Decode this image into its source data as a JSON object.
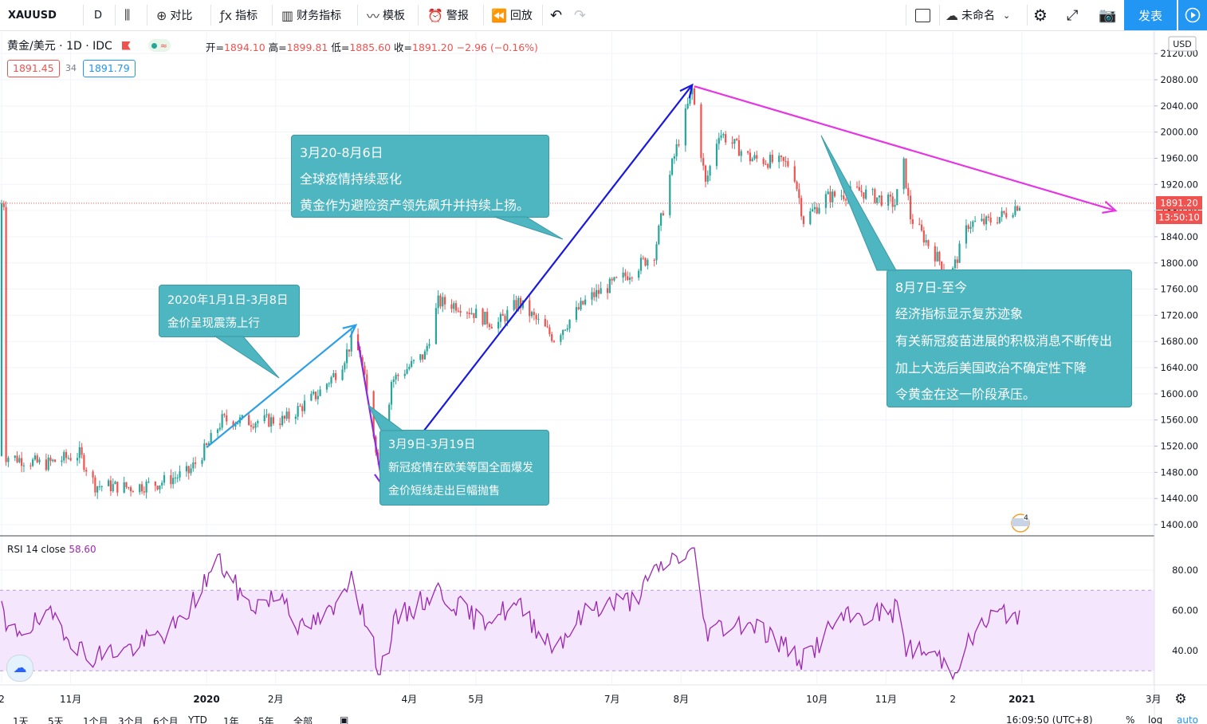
{
  "toolbar": {
    "symbol": "XAUUSD",
    "interval": "D",
    "compare": "对比",
    "indicators": "指标",
    "financials": "财务指标",
    "templates": "模板",
    "alerts": "警报",
    "replay": "回放",
    "layout_name": "未命名",
    "publish": "发表"
  },
  "legend": {
    "title": "黄金/美元 · 1D · IDC",
    "open_label": "开=",
    "open": "1894.10",
    "high_label": "高=",
    "high": "1899.81",
    "low_label": "低=",
    "low": "1885.60",
    "close_label": "收=",
    "close": "1891.20",
    "change": "−2.96 (−0.16%)",
    "bid": "1891.45",
    "spread": "34",
    "ask": "1891.79"
  },
  "currency": "USD",
  "last_price_label": "1891.20",
  "countdown": "13:50:10",
  "rsi": {
    "label": "RSI 14 close",
    "value": "58.60",
    "ticks": [
      "80.00",
      "60.00",
      "40.00"
    ]
  },
  "callouts": [
    {
      "lines": [
        "3月20-8月6日",
        "全球疫情持续恶化",
        "黄金作为避险资产领先飙升并持续上扬。"
      ]
    },
    {
      "lines": [
        "2020年1月1日-3月8日",
        "金价呈现震荡上行"
      ]
    },
    {
      "lines": [
        "3月9日-3月19日",
        "新冠疫情在欧美等国全面爆发",
        "金价短线走出巨幅抛售"
      ]
    },
    {
      "lines": [
        "8月7日-至今",
        "经济指标显示复苏迹象",
        "有关新冠疫苗进展的积极消息不断传出",
        "加上大选后美国政治不确定性下降",
        "令黄金在这一阶段承压。"
      ]
    }
  ],
  "bottom_bar": {
    "ranges": [
      "1天",
      "5天",
      "1个月",
      "3个月",
      "6个月",
      "YTD",
      "1年",
      "5年",
      "全部"
    ],
    "clock": "16:09:50 (UTC+8)",
    "pct": "%",
    "log": "log",
    "auto": "auto"
  },
  "chart_data": {
    "type": "candlestick",
    "symbol": "XAUUSD",
    "ylim": [
      1385,
      2130
    ],
    "y_ticks": [
      "2120.00",
      "2080.00",
      "2040.00",
      "2000.00",
      "1960.00",
      "1920.00",
      "1880.00",
      "1840.00",
      "1800.00",
      "1760.00",
      "1720.00",
      "1680.00",
      "1640.00",
      "1600.00",
      "1560.00",
      "1520.00",
      "1480.00",
      "1440.00",
      "1400.00"
    ],
    "x_ticks": [
      "2",
      "11月",
      "2020",
      "2月",
      "4月",
      "5月",
      "7月",
      "8月",
      "10月",
      "11月",
      "2",
      "2021",
      "3月"
    ],
    "price_anchors": [
      {
        "x": "2019-10-03",
        "y": 1505
      },
      {
        "x": "2019-10-20",
        "y": 1492
      },
      {
        "x": "2019-11-05",
        "y": 1508
      },
      {
        "x": "2019-11-12",
        "y": 1460
      },
      {
        "x": "2019-11-28",
        "y": 1457
      },
      {
        "x": "2019-12-10",
        "y": 1463
      },
      {
        "x": "2019-12-24",
        "y": 1480
      },
      {
        "x": "2020-01-01",
        "y": 1518
      },
      {
        "x": "2020-01-08",
        "y": 1560
      },
      {
        "x": "2020-01-20",
        "y": 1558
      },
      {
        "x": "2020-02-05",
        "y": 1560
      },
      {
        "x": "2020-02-20",
        "y": 1600
      },
      {
        "x": "2020-03-01",
        "y": 1640
      },
      {
        "x": "2020-03-06",
        "y": 1680
      },
      {
        "x": "2020-03-10",
        "y": 1660
      },
      {
        "x": "2020-03-15",
        "y": 1560
      },
      {
        "x": "2020-03-19",
        "y": 1480
      },
      {
        "x": "2020-03-24",
        "y": 1620
      },
      {
        "x": "2020-04-08",
        "y": 1660
      },
      {
        "x": "2020-04-14",
        "y": 1740
      },
      {
        "x": "2020-04-24",
        "y": 1735
      },
      {
        "x": "2020-05-10",
        "y": 1705
      },
      {
        "x": "2020-05-20",
        "y": 1740
      },
      {
        "x": "2020-06-05",
        "y": 1685
      },
      {
        "x": "2020-06-20",
        "y": 1745
      },
      {
        "x": "2020-07-05",
        "y": 1775
      },
      {
        "x": "2020-07-20",
        "y": 1815
      },
      {
        "x": "2020-07-28",
        "y": 1950
      },
      {
        "x": "2020-08-06",
        "y": 2065
      },
      {
        "x": "2020-08-12",
        "y": 1920
      },
      {
        "x": "2020-08-18",
        "y": 2000
      },
      {
        "x": "2020-09-01",
        "y": 1960
      },
      {
        "x": "2020-09-20",
        "y": 1950
      },
      {
        "x": "2020-09-25",
        "y": 1865
      },
      {
        "x": "2020-10-05",
        "y": 1900
      },
      {
        "x": "2020-10-20",
        "y": 1910
      },
      {
        "x": "2020-11-05",
        "y": 1890
      },
      {
        "x": "2020-11-09",
        "y": 1950
      },
      {
        "x": "2020-11-12",
        "y": 1870
      },
      {
        "x": "2020-11-24",
        "y": 1808
      },
      {
        "x": "2020-11-30",
        "y": 1778
      },
      {
        "x": "2020-12-08",
        "y": 1860
      },
      {
        "x": "2020-12-16",
        "y": 1862
      },
      {
        "x": "2020-12-23",
        "y": 1872
      },
      {
        "x": "2020-12-31",
        "y": 1891
      }
    ],
    "rsi_anchors": [
      {
        "x": "2019-10-03",
        "y": 48
      },
      {
        "x": "2019-10-25",
        "y": 57
      },
      {
        "x": "2019-11-08",
        "y": 37
      },
      {
        "x": "2019-12-01",
        "y": 42
      },
      {
        "x": "2019-12-20",
        "y": 53
      },
      {
        "x": "2020-01-06",
        "y": 85
      },
      {
        "x": "2020-01-20",
        "y": 62
      },
      {
        "x": "2020-02-05",
        "y": 68
      },
      {
        "x": "2020-02-12",
        "y": 50
      },
      {
        "x": "2020-02-28",
        "y": 60
      },
      {
        "x": "2020-03-06",
        "y": 80
      },
      {
        "x": "2020-03-12",
        "y": 55
      },
      {
        "x": "2020-03-19",
        "y": 30
      },
      {
        "x": "2020-03-26",
        "y": 55
      },
      {
        "x": "2020-04-14",
        "y": 70
      },
      {
        "x": "2020-05-01",
        "y": 55
      },
      {
        "x": "2020-05-20",
        "y": 62
      },
      {
        "x": "2020-06-05",
        "y": 42
      },
      {
        "x": "2020-06-22",
        "y": 62
      },
      {
        "x": "2020-07-10",
        "y": 65
      },
      {
        "x": "2020-07-26",
        "y": 85
      },
      {
        "x": "2020-08-07",
        "y": 89
      },
      {
        "x": "2020-08-12",
        "y": 50
      },
      {
        "x": "2020-09-01",
        "y": 55
      },
      {
        "x": "2020-09-25",
        "y": 35
      },
      {
        "x": "2020-10-10",
        "y": 55
      },
      {
        "x": "2020-11-06",
        "y": 60
      },
      {
        "x": "2020-11-10",
        "y": 42
      },
      {
        "x": "2020-11-26",
        "y": 36
      },
      {
        "x": "2020-11-30",
        "y": 29
      },
      {
        "x": "2020-12-12",
        "y": 50
      },
      {
        "x": "2020-12-20",
        "y": 58
      },
      {
        "x": "2020-12-31",
        "y": 59
      }
    ],
    "rsi_ylim": [
      25,
      92
    ],
    "rsi_band": [
      30,
      70
    ],
    "last_price": 1891.2,
    "annotations": [
      {
        "from": {
          "x": "2020-01-01",
          "y": 1518
        },
        "to": {
          "x": "2020-03-08",
          "y": 1705
        },
        "color": "#2d9fe6"
      },
      {
        "from": {
          "x": "2020-03-09",
          "y": 1680
        },
        "to": {
          "x": "2020-03-20",
          "y": 1460
        },
        "color": "#8a2be2"
      },
      {
        "from": {
          "x": "2020-03-20",
          "y": 1462
        },
        "to": {
          "x": "2020-08-06",
          "y": 2072
        },
        "color": "#1818e0"
      },
      {
        "from": {
          "x": "2020-08-07",
          "y": 2070
        },
        "to": {
          "x": "2021-02-12",
          "y": 1880
        },
        "color": "#e535e5"
      }
    ]
  }
}
